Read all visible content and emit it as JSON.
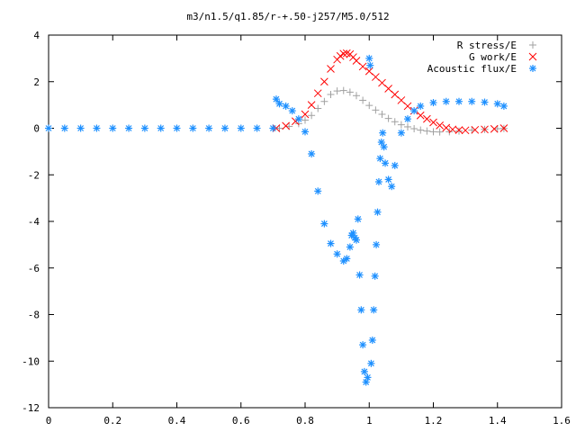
{
  "chart_data": {
    "type": "scatter",
    "title": "m3/n1.5/q1.85/r-+.50-j257/M5.0/512",
    "xlabel": "",
    "ylabel": "",
    "xlim": [
      0,
      1.6
    ],
    "ylim": [
      -12,
      4
    ],
    "x_ticks": [
      {
        "value": 0,
        "label": "0"
      },
      {
        "value": 0.2,
        "label": "0.2"
      },
      {
        "value": 0.4,
        "label": "0.4"
      },
      {
        "value": 0.6,
        "label": "0.6"
      },
      {
        "value": 0.8,
        "label": "0.8"
      },
      {
        "value": 1,
        "label": "1"
      },
      {
        "value": 1.2,
        "label": "1.2"
      },
      {
        "value": 1.4,
        "label": "1.4"
      },
      {
        "value": 1.6,
        "label": "1.6"
      }
    ],
    "y_ticks": [
      {
        "value": 4,
        "label": "4"
      },
      {
        "value": 2,
        "label": "2"
      },
      {
        "value": 0,
        "label": "0"
      },
      {
        "value": -2,
        "label": "-2"
      },
      {
        "value": -4,
        "label": "-4"
      },
      {
        "value": -6,
        "label": "-6"
      },
      {
        "value": -8,
        "label": "-8"
      },
      {
        "value": -10,
        "label": "-10"
      },
      {
        "value": -12,
        "label": "-12"
      }
    ],
    "grid": false,
    "legend_position": "top-right",
    "series": [
      {
        "name": "R stress/E",
        "marker": "plus",
        "color": "#a0a0a0",
        "x": [
          0.72,
          0.75,
          0.78,
          0.8,
          0.82,
          0.84,
          0.86,
          0.88,
          0.9,
          0.92,
          0.94,
          0.96,
          0.98,
          1.0,
          1.02,
          1.04,
          1.06,
          1.08,
          1.1,
          1.12,
          1.14,
          1.16,
          1.18,
          1.2,
          1.22,
          1.25,
          1.28,
          1.32,
          1.36,
          1.4,
          1.42
        ],
        "y": [
          0.0,
          0.08,
          0.2,
          0.35,
          0.55,
          0.85,
          1.15,
          1.45,
          1.6,
          1.62,
          1.55,
          1.4,
          1.2,
          0.98,
          0.78,
          0.6,
          0.42,
          0.28,
          0.15,
          0.06,
          -0.02,
          -0.08,
          -0.12,
          -0.15,
          -0.16,
          -0.15,
          -0.12,
          -0.08,
          -0.05,
          -0.02,
          -0.01
        ]
      },
      {
        "name": "G work/E",
        "marker": "cross",
        "color": "#ff0000",
        "x": [
          0.71,
          0.74,
          0.77,
          0.8,
          0.82,
          0.84,
          0.86,
          0.88,
          0.9,
          0.91,
          0.92,
          0.93,
          0.94,
          0.95,
          0.96,
          0.98,
          1.0,
          1.02,
          1.04,
          1.06,
          1.08,
          1.1,
          1.12,
          1.14,
          1.16,
          1.18,
          1.2,
          1.22,
          1.24,
          1.26,
          1.28,
          1.3,
          1.33,
          1.36,
          1.39,
          1.42
        ],
        "y": [
          0.0,
          0.1,
          0.3,
          0.6,
          1.0,
          1.5,
          2.0,
          2.55,
          2.95,
          3.1,
          3.2,
          3.22,
          3.18,
          3.05,
          2.9,
          2.65,
          2.45,
          2.2,
          1.95,
          1.7,
          1.45,
          1.2,
          0.95,
          0.75,
          0.55,
          0.4,
          0.25,
          0.12,
          0.02,
          -0.05,
          -0.08,
          -0.09,
          -0.07,
          -0.05,
          -0.03,
          0.0
        ]
      },
      {
        "name": "Acoustic flux/E",
        "marker": "star",
        "color": "#1e90ff",
        "x": [
          0.0,
          0.05,
          0.1,
          0.15,
          0.2,
          0.25,
          0.3,
          0.35,
          0.4,
          0.45,
          0.5,
          0.55,
          0.6,
          0.65,
          0.7,
          0.71,
          0.72,
          0.74,
          0.76,
          0.78,
          0.8,
          0.82,
          0.84,
          0.86,
          0.88,
          0.9,
          0.92,
          0.93,
          0.94,
          0.945,
          0.95,
          0.955,
          0.96,
          0.965,
          0.97,
          0.975,
          0.98,
          0.985,
          0.99,
          0.995,
          1.0,
          1.003,
          1.006,
          1.01,
          1.014,
          1.018,
          1.022,
          1.026,
          1.03,
          1.034,
          1.038,
          1.042,
          1.046,
          1.05,
          1.06,
          1.07,
          1.08,
          1.1,
          1.12,
          1.14,
          1.16,
          1.2,
          1.24,
          1.28,
          1.32,
          1.36,
          1.4,
          1.42
        ],
        "y": [
          0.0,
          0.0,
          0.0,
          0.0,
          0.0,
          0.0,
          0.0,
          0.0,
          0.0,
          0.0,
          0.0,
          0.0,
          0.0,
          0.0,
          0.0,
          1.25,
          1.05,
          0.95,
          0.75,
          0.4,
          -0.15,
          -1.1,
          -2.7,
          -4.1,
          -4.95,
          -5.4,
          -5.7,
          -5.6,
          -5.1,
          -4.6,
          -4.5,
          -4.7,
          -4.8,
          -3.9,
          -6.3,
          -7.8,
          -9.3,
          -10.45,
          -10.9,
          -10.7,
          3.0,
          2.7,
          -10.1,
          -9.1,
          -7.8,
          -6.35,
          -5.0,
          -3.6,
          -2.3,
          -1.3,
          -0.6,
          -0.2,
          -0.8,
          -1.5,
          -2.2,
          -2.5,
          -1.6,
          -0.2,
          0.4,
          0.75,
          0.95,
          1.1,
          1.15,
          1.15,
          1.15,
          1.12,
          1.05,
          0.95
        ]
      }
    ]
  }
}
